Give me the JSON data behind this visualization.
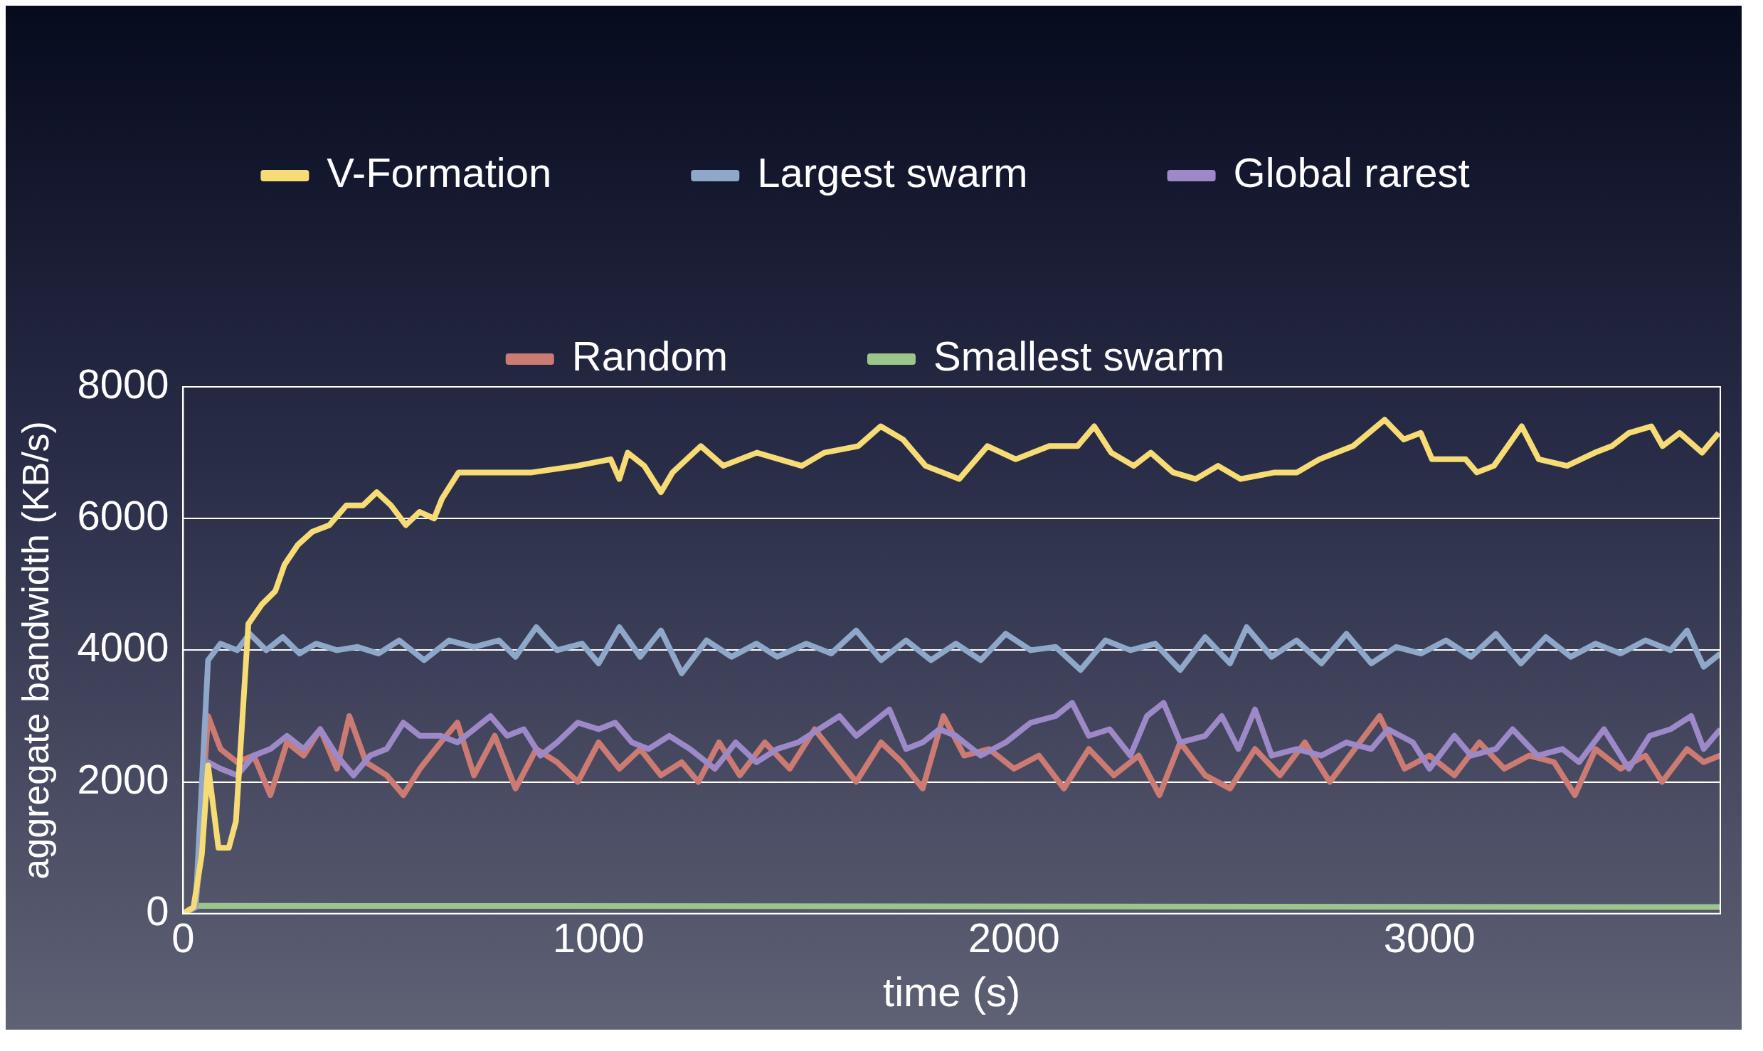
{
  "chart_data": {
    "type": "line",
    "xlabel": "time (s)",
    "ylabel": "aggregate bandwidth (KB/s)",
    "xlim": [
      0,
      3700
    ],
    "xticks": [
      0,
      1000,
      2000,
      3000
    ],
    "ylim": [
      0,
      8000
    ],
    "yticks": [
      0,
      2000,
      4000,
      6000,
      8000
    ],
    "grid": "y",
    "legend": "top",
    "marker": "none",
    "line_style": "solid",
    "series": [
      {
        "name": "V-Formation",
        "color": "#f7db74",
        "x": [
          0,
          25,
          45,
          60,
          85,
          110,
          127,
          157,
          190,
          222,
          244,
          276,
          311,
          352,
          393,
          433,
          466,
          500,
          536,
          569,
          604,
          623,
          663,
          704,
          758,
          839,
          948,
          1029,
          1050,
          1070,
          1110,
          1150,
          1178,
          1246,
          1300,
          1381,
          1489,
          1543,
          1625,
          1679,
          1733,
          1787,
          1868,
          1936,
          2004,
          2085,
          2153,
          2193,
          2234,
          2288,
          2329,
          2383,
          2437,
          2491,
          2545,
          2627,
          2681,
          2735,
          2816,
          2892,
          2938,
          2979,
          3006,
          3087,
          3114,
          3155,
          3222,
          3263,
          3331,
          3398,
          3439,
          3480,
          3534,
          3561,
          3602,
          3656,
          3696
        ],
        "values": [
          0,
          100,
          900,
          2250,
          1000,
          1000,
          1400,
          4400,
          4700,
          4900,
          5300,
          5600,
          5800,
          5900,
          6200,
          6200,
          6400,
          6200,
          5900,
          6100,
          6000,
          6300,
          6700,
          6700,
          6700,
          6700,
          6800,
          6900,
          6600,
          7000,
          6800,
          6400,
          6700,
          7100,
          6800,
          7000,
          6800,
          7000,
          7100,
          7400,
          7200,
          6800,
          6600,
          7100,
          6900,
          7100,
          7100,
          7400,
          7000,
          6800,
          7000,
          6700,
          6600,
          6800,
          6600,
          6700,
          6700,
          6900,
          7100,
          7500,
          7200,
          7300,
          6900,
          6900,
          6700,
          6800,
          7400,
          6900,
          6800,
          7000,
          7100,
          7300,
          7400,
          7100,
          7300,
          7000,
          7300
        ]
      },
      {
        "name": "Largest swarm",
        "color": "#8fa7c9",
        "x": [
          0,
          30,
          60,
          90,
          130,
          160,
          200,
          240,
          280,
          320,
          370,
          420,
          470,
          520,
          580,
          640,
          700,
          760,
          800,
          850,
          900,
          960,
          1000,
          1050,
          1100,
          1150,
          1200,
          1260,
          1320,
          1380,
          1430,
          1500,
          1560,
          1620,
          1680,
          1740,
          1800,
          1860,
          1920,
          1980,
          2040,
          2100,
          2160,
          2220,
          2280,
          2340,
          2400,
          2460,
          2520,
          2560,
          2620,
          2680,
          2740,
          2800,
          2860,
          2920,
          2980,
          3040,
          3100,
          3160,
          3220,
          3280,
          3340,
          3400,
          3460,
          3520,
          3580,
          3620,
          3660,
          3700
        ],
        "values": [
          0,
          100,
          3850,
          4100,
          4000,
          4250,
          4000,
          4200,
          3950,
          4100,
          4000,
          4050,
          3950,
          4150,
          3850,
          4150,
          4050,
          4150,
          3900,
          4350,
          4000,
          4100,
          3800,
          4350,
          3900,
          4300,
          3650,
          4150,
          3900,
          4100,
          3900,
          4100,
          3950,
          4300,
          3850,
          4150,
          3850,
          4100,
          3850,
          4250,
          4000,
          4050,
          3700,
          4150,
          4000,
          4100,
          3700,
          4200,
          3800,
          4350,
          3900,
          4150,
          3800,
          4250,
          3800,
          4050,
          3950,
          4150,
          3900,
          4250,
          3800,
          4200,
          3900,
          4100,
          3950,
          4150,
          4000,
          4300,
          3750,
          3950
        ]
      },
      {
        "name": "Global rarest",
        "color": "#9d89c7",
        "x": [
          0,
          30,
          60,
          90,
          130,
          170,
          210,
          250,
          290,
          330,
          370,
          410,
          450,
          490,
          530,
          570,
          620,
          660,
          700,
          740,
          780,
          820,
          860,
          900,
          950,
          1000,
          1040,
          1080,
          1120,
          1170,
          1220,
          1280,
          1330,
          1380,
          1430,
          1480,
          1530,
          1580,
          1620,
          1660,
          1700,
          1740,
          1780,
          1820,
          1860,
          1920,
          1980,
          2040,
          2100,
          2140,
          2180,
          2230,
          2280,
          2320,
          2360,
          2400,
          2460,
          2500,
          2540,
          2580,
          2620,
          2680,
          2740,
          2800,
          2860,
          2900,
          2960,
          3000,
          3060,
          3100,
          3160,
          3200,
          3260,
          3320,
          3360,
          3420,
          3480,
          3530,
          3580,
          3630,
          3660,
          3700
        ],
        "values": [
          0,
          100,
          2300,
          2200,
          2100,
          2400,
          2500,
          2700,
          2500,
          2800,
          2400,
          2100,
          2400,
          2500,
          2900,
          2700,
          2700,
          2600,
          2800,
          3000,
          2700,
          2800,
          2400,
          2600,
          2900,
          2800,
          2900,
          2600,
          2500,
          2700,
          2500,
          2200,
          2600,
          2300,
          2500,
          2600,
          2800,
          3000,
          2700,
          2900,
          3100,
          2500,
          2600,
          2800,
          2700,
          2400,
          2600,
          2900,
          3000,
          3200,
          2700,
          2800,
          2400,
          3000,
          3200,
          2600,
          2700,
          3000,
          2500,
          3100,
          2400,
          2500,
          2400,
          2600,
          2500,
          2800,
          2600,
          2200,
          2700,
          2400,
          2500,
          2800,
          2400,
          2500,
          2300,
          2800,
          2200,
          2700,
          2800,
          3000,
          2500,
          2800
        ]
      },
      {
        "name": "Random",
        "color": "#cc7b73",
        "x": [
          0,
          30,
          60,
          90,
          130,
          170,
          210,
          250,
          290,
          330,
          370,
          400,
          440,
          490,
          530,
          570,
          620,
          660,
          700,
          750,
          800,
          850,
          900,
          950,
          1000,
          1050,
          1100,
          1150,
          1200,
          1240,
          1290,
          1340,
          1400,
          1460,
          1520,
          1570,
          1620,
          1680,
          1730,
          1780,
          1830,
          1880,
          1940,
          2000,
          2060,
          2120,
          2180,
          2240,
          2300,
          2350,
          2400,
          2460,
          2520,
          2580,
          2640,
          2700,
          2760,
          2820,
          2880,
          2940,
          3000,
          3060,
          3120,
          3180,
          3240,
          3300,
          3350,
          3400,
          3460,
          3520,
          3560,
          3620,
          3660,
          3700
        ],
        "values": [
          0,
          100,
          3000,
          2500,
          2300,
          2400,
          1800,
          2600,
          2400,
          2800,
          2200,
          3000,
          2300,
          2100,
          1800,
          2200,
          2600,
          2900,
          2100,
          2700,
          1900,
          2500,
          2300,
          2000,
          2600,
          2200,
          2500,
          2100,
          2300,
          2000,
          2600,
          2100,
          2600,
          2200,
          2800,
          2400,
          2000,
          2600,
          2300,
          1900,
          3000,
          2400,
          2500,
          2200,
          2400,
          1900,
          2500,
          2100,
          2400,
          1800,
          2600,
          2100,
          1900,
          2500,
          2100,
          2600,
          2000,
          2500,
          3000,
          2200,
          2400,
          2100,
          2600,
          2200,
          2400,
          2300,
          1800,
          2500,
          2200,
          2400,
          2000,
          2500,
          2300,
          2400
        ]
      },
      {
        "name": "Smallest swarm",
        "color": "#9cc58b",
        "x": [
          0,
          30,
          40,
          3700
        ],
        "values": [
          0,
          100,
          120,
          100
        ]
      }
    ]
  }
}
